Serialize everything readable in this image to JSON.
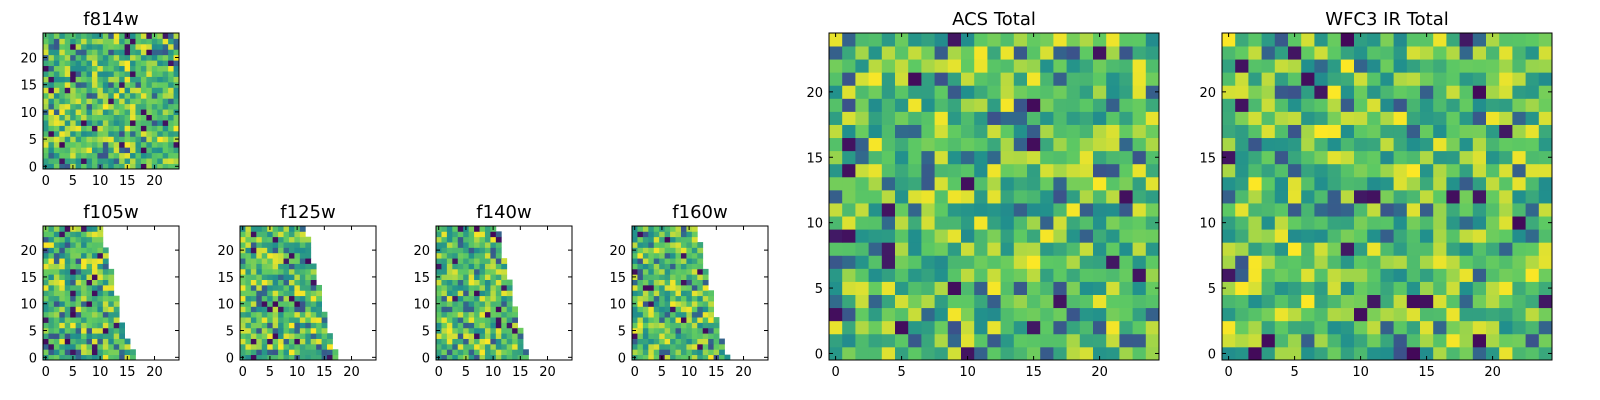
{
  "figure": {
    "background": "#ffffff"
  },
  "colormap": {
    "name": "viridis",
    "stops": [
      "#440154",
      "#3b528b",
      "#21908d",
      "#5dc963",
      "#fde725"
    ]
  },
  "chart_data": [
    {
      "id": "f814w",
      "type": "heatmap",
      "title": "f814w",
      "x_range": [
        0,
        24
      ],
      "y_range": [
        0,
        24
      ],
      "xticks": [
        0,
        5,
        10,
        15,
        20
      ],
      "yticks": [
        0,
        5,
        10,
        15,
        20
      ],
      "grid_size": 25,
      "coverage_right_edge_by_row": [
        24,
        24,
        24,
        24,
        24,
        24,
        24,
        24,
        24,
        24,
        24,
        24,
        24,
        24,
        24,
        24,
        24,
        24,
        24,
        24,
        24,
        24,
        24,
        24,
        24
      ],
      "pattern_seed": 11
    },
    {
      "id": "f105w",
      "type": "heatmap",
      "title": "f105w",
      "x_range": [
        0,
        24
      ],
      "y_range": [
        0,
        24
      ],
      "xticks": [
        0,
        5,
        10,
        15,
        20
      ],
      "yticks": [
        0,
        5,
        10,
        15,
        20
      ],
      "grid_size": 25,
      "coverage_right_edge_by_row": [
        16,
        16,
        15,
        15,
        14,
        14,
        14,
        13,
        13,
        13,
        13,
        13,
        12,
        12,
        12,
        12,
        12,
        11,
        11,
        11,
        11,
        10,
        10,
        10,
        10
      ],
      "pattern_seed": 23
    },
    {
      "id": "f125w",
      "type": "heatmap",
      "title": "f125w",
      "x_range": [
        0,
        24
      ],
      "y_range": [
        0,
        24
      ],
      "xticks": [
        0,
        5,
        10,
        15,
        20
      ],
      "yticks": [
        0,
        5,
        10,
        15,
        20
      ],
      "grid_size": 25,
      "coverage_right_edge_by_row": [
        17,
        17,
        16,
        16,
        16,
        15,
        15,
        15,
        15,
        14,
        14,
        14,
        14,
        14,
        13,
        13,
        13,
        13,
        12,
        12,
        12,
        12,
        12,
        11,
        11
      ],
      "pattern_seed": 37
    },
    {
      "id": "f140w",
      "type": "heatmap",
      "title": "f140w",
      "x_range": [
        0,
        24
      ],
      "y_range": [
        0,
        24
      ],
      "xticks": [
        0,
        5,
        10,
        15,
        20
      ],
      "yticks": [
        0,
        5,
        10,
        15,
        20
      ],
      "grid_size": 25,
      "coverage_right_edge_by_row": [
        16,
        16,
        15,
        15,
        15,
        15,
        14,
        14,
        14,
        14,
        13,
        13,
        13,
        13,
        13,
        12,
        12,
        12,
        12,
        11,
        11,
        11,
        11,
        11,
        10
      ],
      "pattern_seed": 53
    },
    {
      "id": "f160w",
      "type": "heatmap",
      "title": "f160w",
      "x_range": [
        0,
        24
      ],
      "y_range": [
        0,
        24
      ],
      "xticks": [
        0,
        5,
        10,
        15,
        20
      ],
      "yticks": [
        0,
        5,
        10,
        15,
        20
      ],
      "grid_size": 25,
      "coverage_right_edge_by_row": [
        17,
        16,
        16,
        16,
        15,
        15,
        15,
        15,
        14,
        14,
        14,
        14,
        14,
        13,
        13,
        13,
        13,
        12,
        12,
        12,
        12,
        12,
        11,
        11,
        11
      ],
      "pattern_seed": 71
    },
    {
      "id": "acs_total",
      "type": "heatmap",
      "title": "ACS Total",
      "x_range": [
        0,
        24
      ],
      "y_range": [
        0,
        24
      ],
      "xticks": [
        0,
        5,
        10,
        15,
        20
      ],
      "yticks": [
        0,
        5,
        10,
        15,
        20
      ],
      "grid_size": 25,
      "coverage_right_edge_by_row": [
        24,
        24,
        24,
        24,
        24,
        24,
        24,
        24,
        24,
        24,
        24,
        24,
        24,
        24,
        24,
        24,
        24,
        24,
        24,
        24,
        24,
        24,
        24,
        24,
        24
      ],
      "pattern_seed": 89
    },
    {
      "id": "wfc3_ir_total",
      "type": "heatmap",
      "title": "WFC3 IR Total",
      "x_range": [
        0,
        24
      ],
      "y_range": [
        0,
        24
      ],
      "xticks": [
        0,
        5,
        10,
        15,
        20
      ],
      "yticks": [
        0,
        5,
        10,
        15,
        20
      ],
      "grid_size": 25,
      "coverage_right_edge_by_row": [
        24,
        24,
        24,
        24,
        24,
        24,
        24,
        24,
        24,
        24,
        24,
        24,
        24,
        24,
        24,
        24,
        24,
        24,
        24,
        24,
        24,
        24,
        24,
        24,
        24
      ],
      "pattern_seed": 97
    }
  ]
}
